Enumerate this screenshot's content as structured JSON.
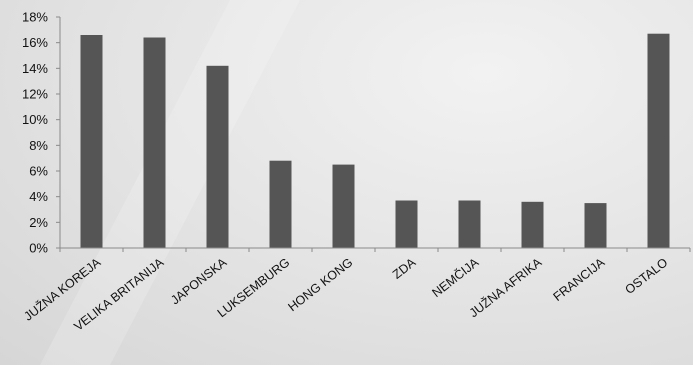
{
  "chart_data": {
    "type": "bar",
    "categories": [
      "JUŽNA KOREJA",
      "VELIKA BRITANIJA",
      "JAPONSKA",
      "LUKSEMBURG",
      "HONG KONG",
      "ZDA",
      "NEMČIJA",
      "JUŽNA AFRIKA",
      "FRANCIJA",
      "OSTALO"
    ],
    "values": [
      16.6,
      16.4,
      14.2,
      6.8,
      6.5,
      3.7,
      3.7,
      3.6,
      3.5,
      16.7
    ],
    "yticks": [
      "0%",
      "2%",
      "4%",
      "6%",
      "8%",
      "10%",
      "12%",
      "14%",
      "16%",
      "18%"
    ],
    "ylim": [
      0,
      18
    ],
    "value_unit": "%",
    "grid": false,
    "legend": "none",
    "title": "",
    "xlabel": "",
    "ylabel": "",
    "bar_color": "#555555"
  }
}
